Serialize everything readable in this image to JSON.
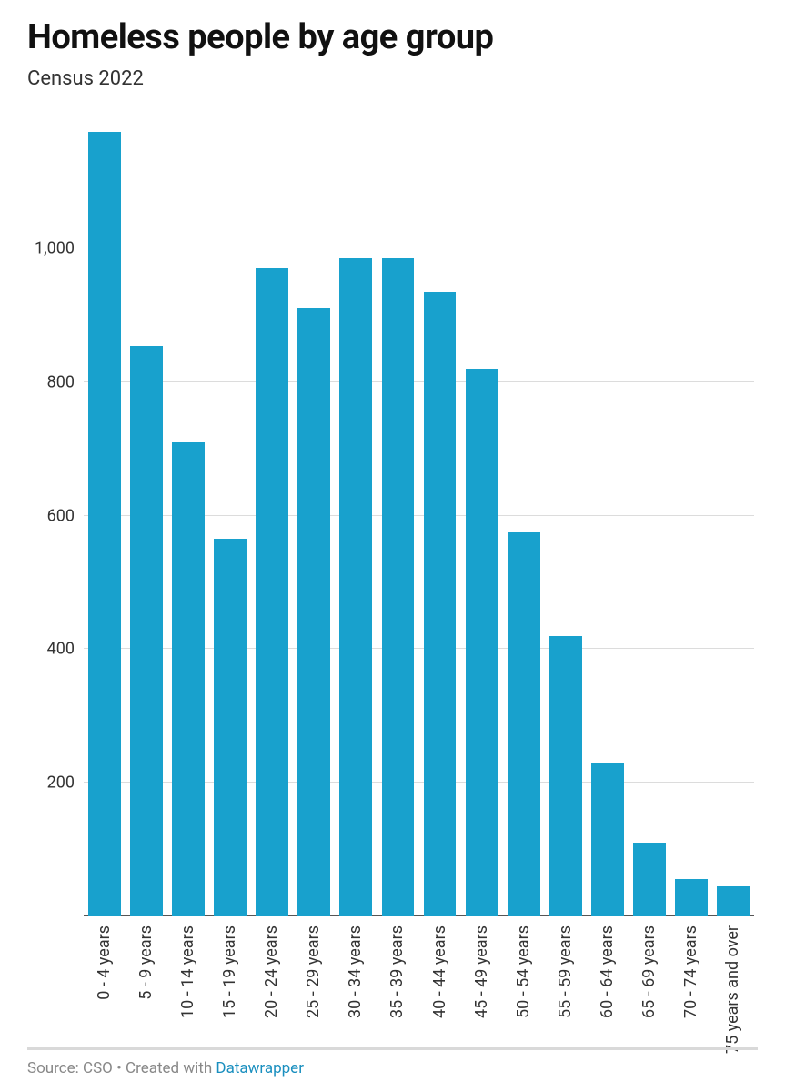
{
  "chart": {
    "type": "bar",
    "title": "Homeless people by age group",
    "subtitle": "Census 2022",
    "title_fontsize": 38,
    "title_fontweight": 700,
    "subtitle_fontsize": 22,
    "background_color": "#ffffff",
    "bar_color": "#18a1cd",
    "grid_color": "#dcdcdc",
    "baseline_color": "#555555",
    "text_color": "#333333",
    "bar_width_ratio": 0.78,
    "ylim": [
      0,
      1200
    ],
    "ytick_step": 200,
    "yticks": [
      {
        "value": 200,
        "label": "200"
      },
      {
        "value": 400,
        "label": "400"
      },
      {
        "value": 600,
        "label": "600"
      },
      {
        "value": 800,
        "label": "800"
      },
      {
        "value": 1000,
        "label": "1,000"
      }
    ],
    "label_fontsize": 18,
    "categories": [
      "0 - 4 years",
      "5 - 9 years",
      "10 - 14 years",
      "15 - 19 years",
      "20 - 24 years",
      "25 - 29 years",
      "30 - 34 years",
      "35 - 39 years",
      "40 - 44 years",
      "45 - 49 years",
      "50 - 54 years",
      "55 - 59 years",
      "60 - 64 years",
      "65 - 69 years",
      "70 - 74 years",
      "75 years and over"
    ],
    "values": [
      1175,
      855,
      710,
      565,
      970,
      910,
      985,
      985,
      935,
      820,
      575,
      420,
      230,
      110,
      55,
      45
    ]
  },
  "footer": {
    "source_prefix": "Source: ",
    "source_name": "CSO",
    "separator": " • ",
    "created_with_prefix": "Created with ",
    "tool_name": "Datawrapper",
    "tool_link_color": "#1a8fbf",
    "divider_color": "#d9d9d9"
  }
}
